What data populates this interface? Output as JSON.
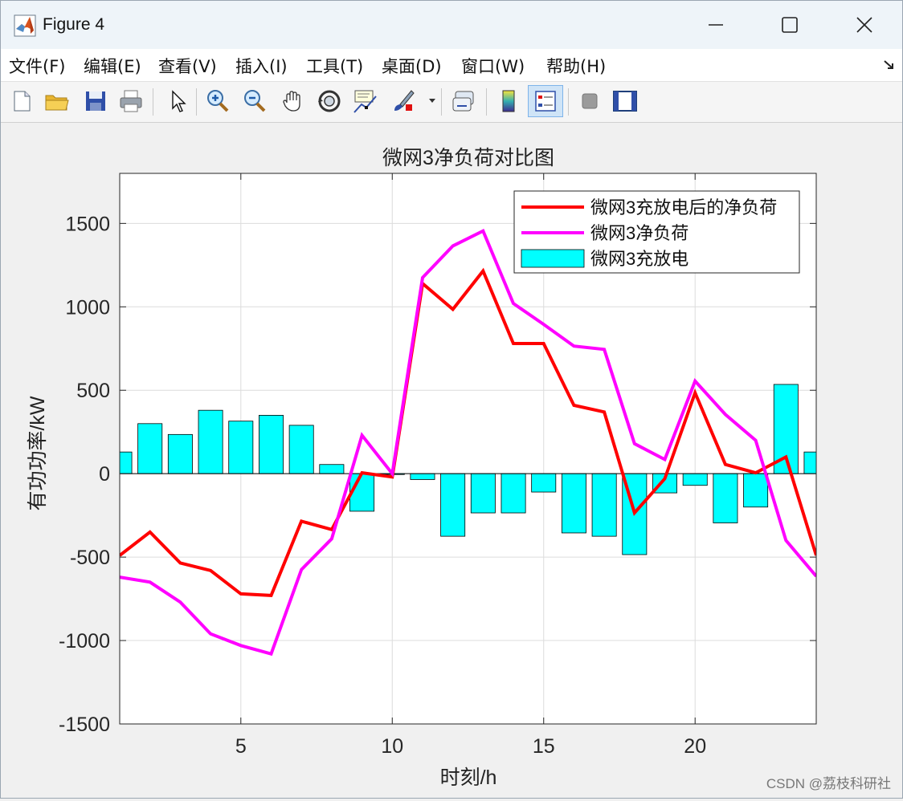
{
  "window": {
    "title": "Figure 4"
  },
  "menu": [
    {
      "label": "文件(F)",
      "name": "menu-file"
    },
    {
      "label": "编辑(E)",
      "name": "menu-edit"
    },
    {
      "label": "查看(V)",
      "name": "menu-view"
    },
    {
      "label": "插入(I)",
      "name": "menu-insert"
    },
    {
      "label": "工具(T)",
      "name": "menu-tools"
    },
    {
      "label": "桌面(D)",
      "name": "menu-desktop"
    },
    {
      "label": "窗口(W)",
      "name": "menu-window"
    },
    {
      "label": "帮助(H)",
      "name": "menu-help"
    }
  ],
  "toolbar": {
    "icons": [
      "new-file-icon",
      "open-folder-icon",
      "save-icon",
      "print-icon",
      "pointer-icon",
      "zoom-in-icon",
      "zoom-out-icon",
      "pan-hand-icon",
      "rotate-3d-icon",
      "data-cursor-icon",
      "brush-icon",
      "brush-dropdown-icon",
      "link-plot-icon",
      "colorbar-icon",
      "legend-icon",
      "hide-plot-tools-icon",
      "show-plot-tools-icon"
    ]
  },
  "watermark": "CSDN @荔枝科研社",
  "chart_data": {
    "type": "bar+line",
    "title": "微网3净负荷对比图",
    "xlabel": "时刻/h",
    "ylabel": "有功功率/kW",
    "xlim": [
      1,
      24
    ],
    "ylim": [
      -1500,
      1800
    ],
    "xticks": [
      5,
      10,
      15,
      20
    ],
    "yticks": [
      -1500,
      -1000,
      -500,
      0,
      500,
      1000,
      1500
    ],
    "grid": true,
    "legend_position": "top-right",
    "x": [
      1,
      2,
      3,
      4,
      5,
      6,
      7,
      8,
      9,
      10,
      11,
      12,
      13,
      14,
      15,
      16,
      17,
      18,
      19,
      20,
      21,
      22,
      23,
      24
    ],
    "bars": {
      "name": "微网3充放电",
      "color": "#00ffff",
      "values": [
        130,
        300,
        235,
        380,
        315,
        350,
        290,
        55,
        -225,
        -5,
        -35,
        -375,
        -235,
        -235,
        -110,
        -355,
        -375,
        -485,
        -115,
        -70,
        -295,
        -200,
        535,
        130
      ]
    },
    "series": [
      {
        "name": "微网3充放电后的净负荷",
        "color": "#ff0000",
        "values": [
          -490,
          -350,
          -535,
          -580,
          -720,
          -730,
          -285,
          -335,
          5,
          -20,
          1140,
          985,
          1215,
          780,
          780,
          410,
          370,
          -235,
          -30,
          485,
          55,
          5,
          100,
          -490
        ]
      },
      {
        "name": "微网3净负荷",
        "color": "#ff00ff",
        "values": [
          -620,
          -650,
          -770,
          -960,
          -1030,
          -1080,
          -575,
          -390,
          230,
          0,
          1175,
          1365,
          1455,
          1020,
          895,
          765,
          745,
          180,
          85,
          555,
          355,
          200,
          -400,
          -615
        ]
      }
    ]
  }
}
